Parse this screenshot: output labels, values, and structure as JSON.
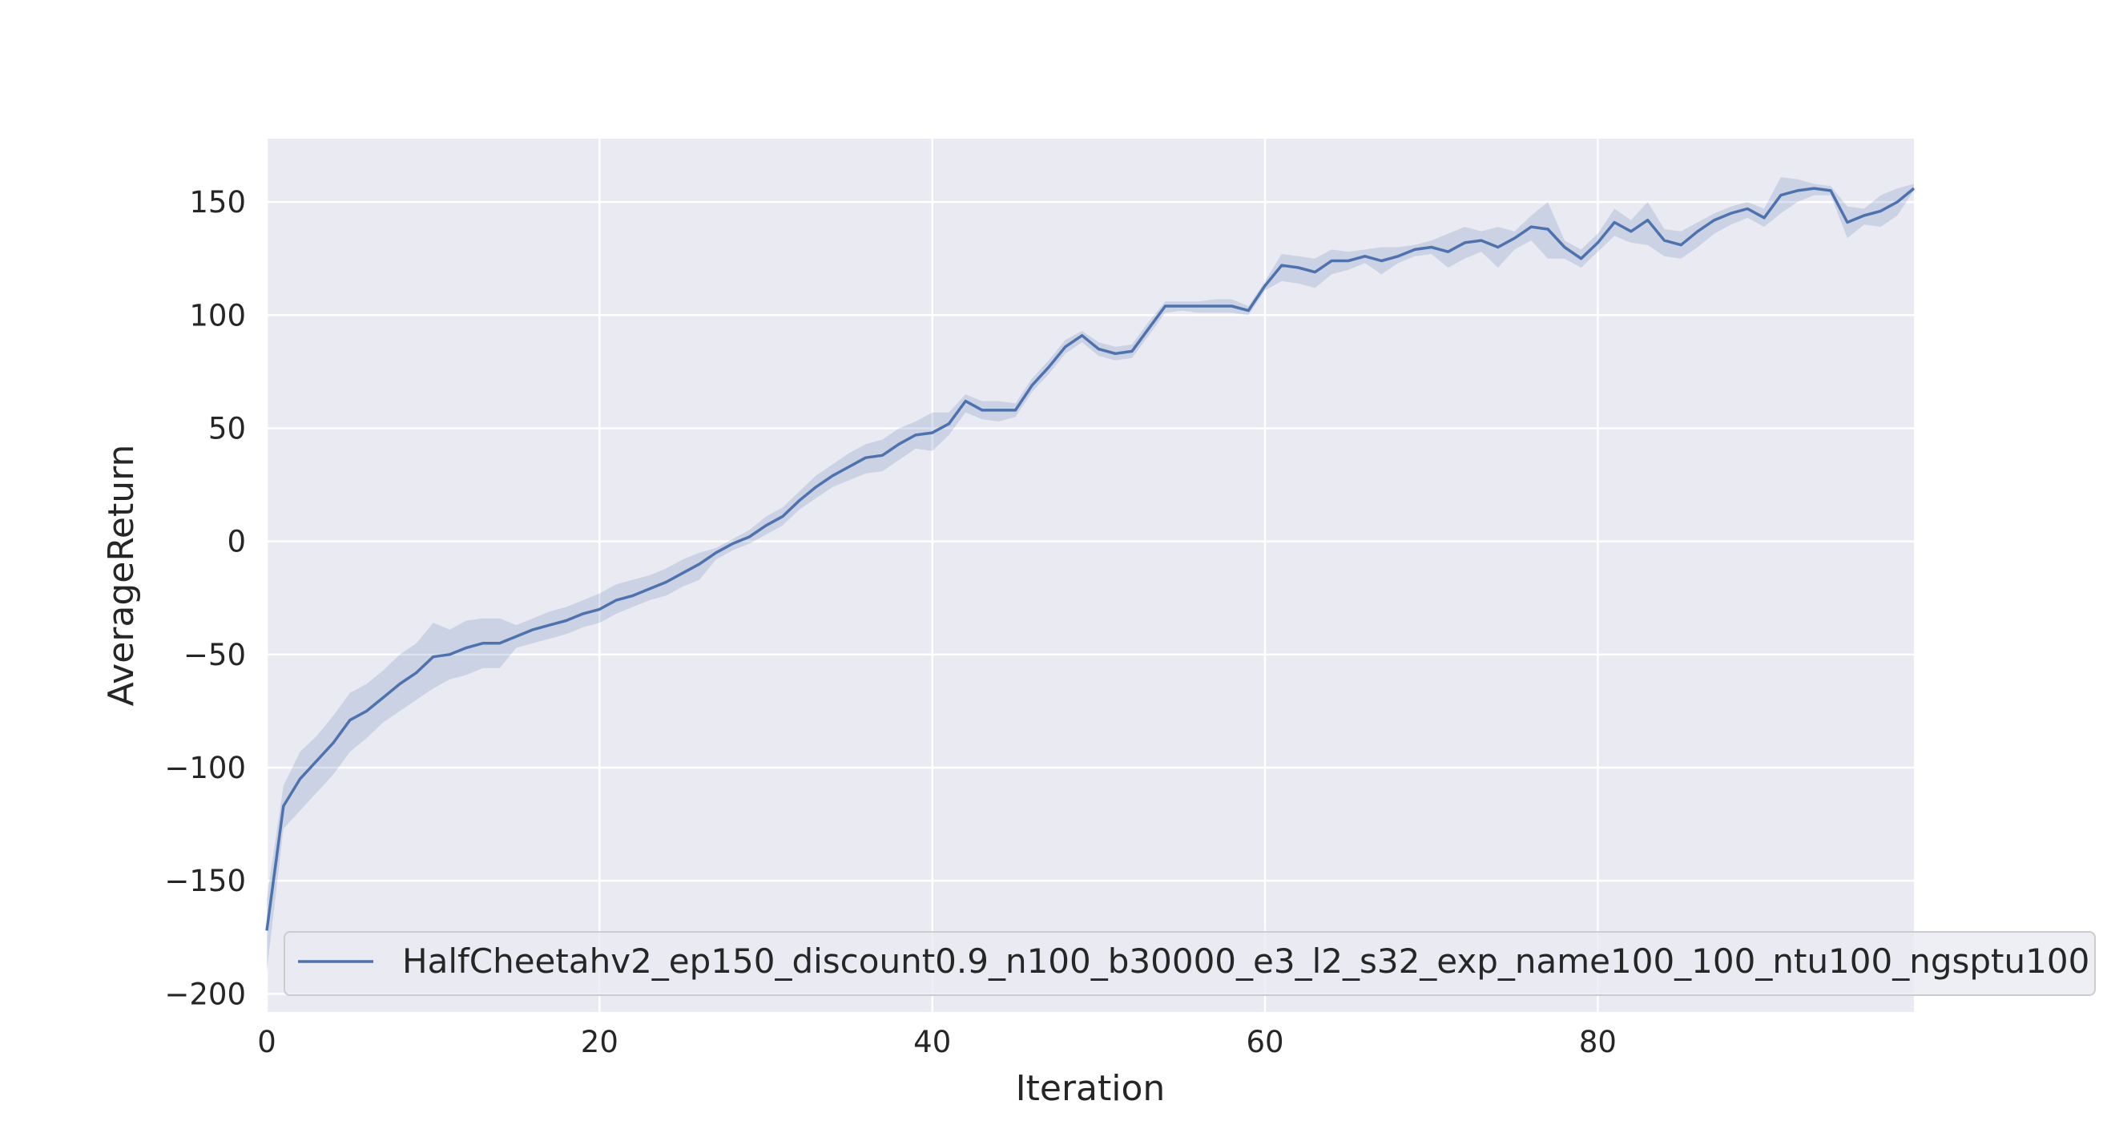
{
  "chart_data": {
    "type": "line",
    "xlabel": "Iteration",
    "ylabel": "AverageReturn",
    "xlim": [
      0,
      99
    ],
    "ylim": [
      -208,
      178
    ],
    "xticks": [
      0,
      20,
      40,
      60,
      80
    ],
    "yticks": [
      -200,
      -150,
      -100,
      -50,
      0,
      50,
      100,
      150
    ],
    "grid": true,
    "legend_position": "lower right",
    "colors": {
      "line": "#4c72b0",
      "band": "#4c72b0",
      "plot_bg": "#eaeaf2",
      "grid": "#ffffff"
    },
    "series": [
      {
        "name": "HalfCheetahv2_ep150_discount0.9_n100_b30000_e3_l2_s32_exp_name100_100_ntu100_ngsptu100",
        "x": [
          0,
          1,
          2,
          3,
          4,
          5,
          6,
          7,
          8,
          9,
          10,
          11,
          12,
          13,
          14,
          15,
          16,
          17,
          18,
          19,
          20,
          21,
          22,
          23,
          24,
          25,
          26,
          27,
          28,
          29,
          30,
          31,
          32,
          33,
          34,
          35,
          36,
          37,
          38,
          39,
          40,
          41,
          42,
          43,
          44,
          45,
          46,
          47,
          48,
          49,
          50,
          51,
          52,
          53,
          54,
          55,
          56,
          57,
          58,
          59,
          60,
          61,
          62,
          63,
          64,
          65,
          66,
          67,
          68,
          69,
          70,
          71,
          72,
          73,
          74,
          75,
          76,
          77,
          78,
          79,
          80,
          81,
          82,
          83,
          84,
          85,
          86,
          87,
          88,
          89,
          90,
          91,
          92,
          93,
          94,
          95,
          96,
          97,
          98,
          99
        ],
        "mean": [
          -172,
          -117,
          -105,
          -97,
          -89,
          -79,
          -75,
          -69,
          -63,
          -58,
          -51,
          -50,
          -47,
          -45,
          -45,
          -42,
          -39,
          -37,
          -35,
          -32,
          -30,
          -26,
          -24,
          -21,
          -18,
          -14,
          -10,
          -5,
          -1,
          2,
          7,
          11,
          18,
          24,
          29,
          33,
          37,
          38,
          43,
          47,
          48,
          52,
          62,
          58,
          58,
          58,
          69,
          77,
          86,
          91,
          85,
          83,
          84,
          94,
          104,
          104,
          104,
          104,
          104,
          102,
          113,
          122,
          121,
          119,
          124,
          124,
          126,
          124,
          126,
          129,
          130,
          128,
          132,
          133,
          130,
          134,
          139,
          138,
          130,
          125,
          132,
          141,
          137,
          142,
          133,
          131,
          137,
          142,
          145,
          147,
          143,
          153,
          155,
          156,
          155,
          141,
          144,
          146,
          150,
          156
        ],
        "lower": [
          -190,
          -127,
          -119,
          -111,
          -103,
          -93,
          -87,
          -80,
          -75,
          -70,
          -65,
          -61,
          -59,
          -56,
          -56,
          -47,
          -45,
          -43,
          -41,
          -38,
          -36,
          -32,
          -29,
          -26,
          -24,
          -20,
          -17,
          -8,
          -4,
          -1,
          3,
          7,
          14,
          19,
          24,
          27,
          30,
          31,
          36,
          41,
          40,
          47,
          57,
          54,
          53,
          55,
          66,
          74,
          83,
          88,
          82,
          80,
          81,
          91,
          101,
          102,
          101,
          101,
          101,
          100,
          111,
          115,
          114,
          112,
          118,
          120,
          123,
          118,
          123,
          126,
          127,
          121,
          125,
          128,
          121,
          129,
          133,
          125,
          125,
          121,
          128,
          135,
          132,
          131,
          126,
          125,
          130,
          136,
          140,
          143,
          139,
          145,
          150,
          153,
          153,
          134,
          140,
          139,
          144,
          155
        ],
        "upper": [
          -158,
          -108,
          -93,
          -86,
          -77,
          -67,
          -63,
          -57,
          -50,
          -45,
          -36,
          -39,
          -35,
          -34,
          -34,
          -37,
          -34,
          -31,
          -29,
          -26,
          -23,
          -19,
          -17,
          -15,
          -12,
          -8,
          -5,
          -3,
          1,
          5,
          11,
          15,
          22,
          29,
          34,
          39,
          43,
          45,
          50,
          53,
          57,
          57,
          65,
          62,
          62,
          61,
          72,
          80,
          89,
          93,
          88,
          86,
          87,
          97,
          106,
          106,
          106,
          107,
          107,
          104,
          115,
          127,
          126,
          125,
          129,
          128,
          129,
          130,
          130,
          131,
          133,
          136,
          139,
          137,
          139,
          137,
          144,
          150,
          133,
          129,
          136,
          147,
          142,
          150,
          138,
          137,
          141,
          145,
          148,
          150,
          147,
          161,
          160,
          158,
          157,
          148,
          147,
          153,
          156,
          158
        ]
      }
    ]
  }
}
